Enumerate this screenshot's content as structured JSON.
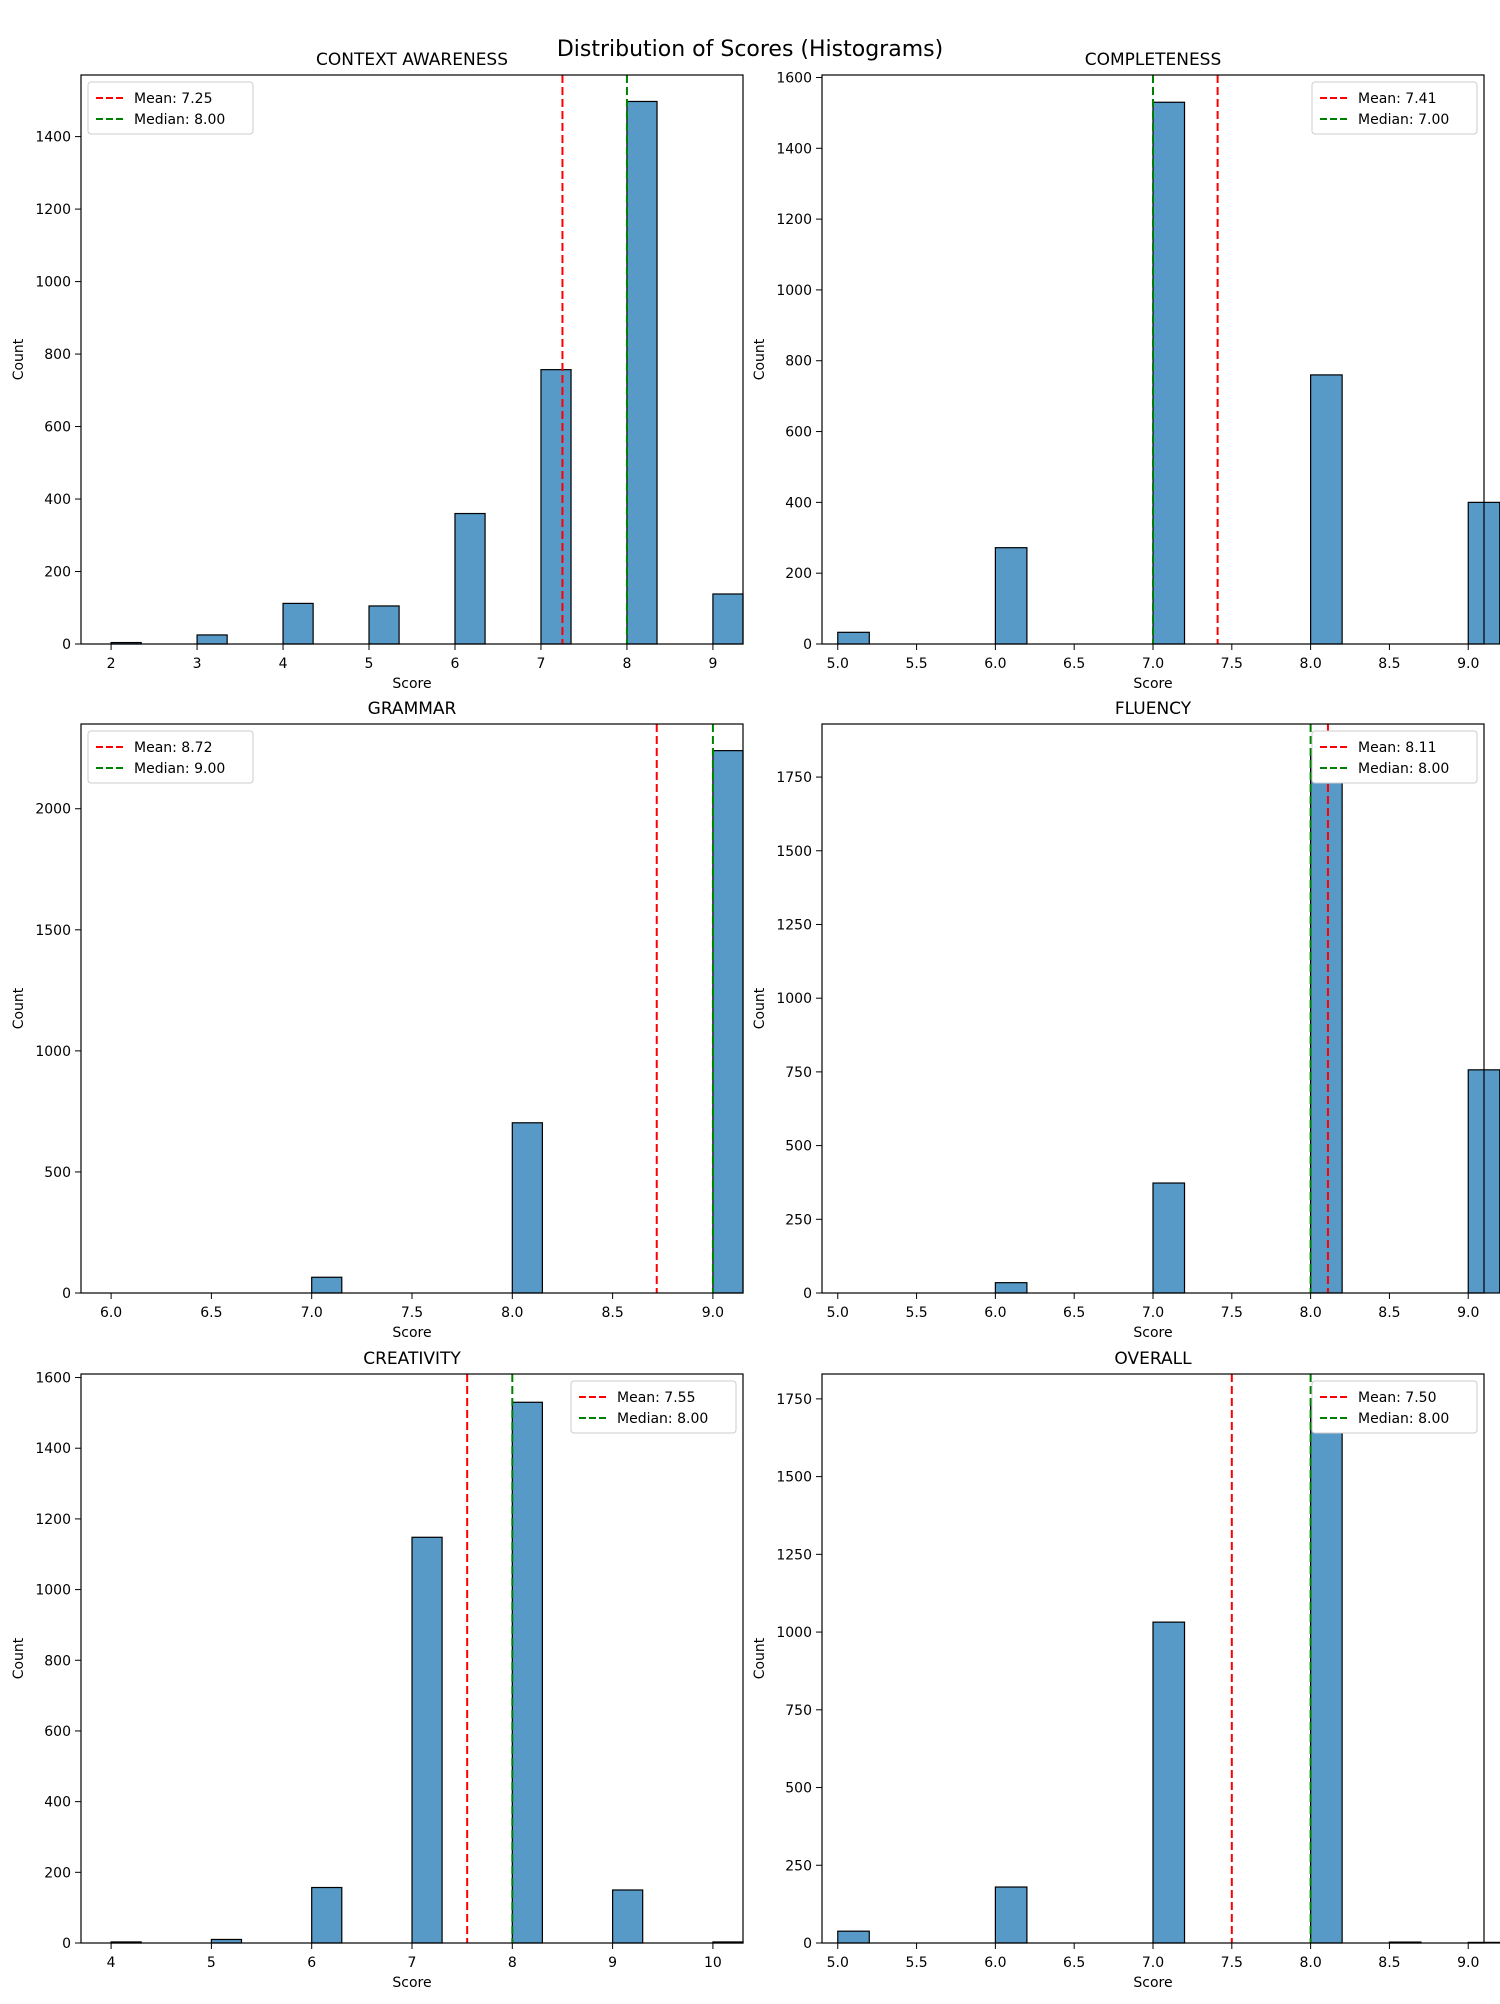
{
  "title": "Distribution of Scores (Histograms)",
  "colors": {
    "bar": "#5799c7",
    "bar_edge": "#000000",
    "mean": "#ff0000",
    "median": "#008000"
  },
  "chart_data": [
    {
      "type": "bar",
      "title": "CONTEXT AWARENESS",
      "xlabel": "Score",
      "ylabel": "Count",
      "xlim": [
        1.65,
        9.35
      ],
      "ylim": [
        0,
        1570
      ],
      "xticks": [
        2,
        3,
        4,
        5,
        6,
        7,
        8,
        9
      ],
      "xtick_labels": [
        "2",
        "3",
        "4",
        "5",
        "6",
        "7",
        "8",
        "9"
      ],
      "yticks": [
        0,
        200,
        400,
        600,
        800,
        1000,
        1200,
        1400
      ],
      "ytick_labels": [
        "0",
        "200",
        "400",
        "600",
        "800",
        "1000",
        "1200",
        "1400"
      ],
      "bar_width": 0.35,
      "bars": [
        [
          2,
          4
        ],
        [
          3,
          25
        ],
        [
          4,
          112
        ],
        [
          5,
          105
        ],
        [
          6,
          360
        ],
        [
          7,
          757
        ],
        [
          8,
          1497
        ],
        [
          9,
          138
        ]
      ],
      "mean": 7.25,
      "median": 8.0,
      "legend": [
        "Mean: 7.25",
        "Median: 8.00"
      ],
      "legend_loc": "upper-left"
    },
    {
      "type": "bar",
      "title": "COMPLETENESS",
      "xlabel": "Score",
      "ylabel": "Count",
      "xlim": [
        4.9,
        9.1
      ],
      "ylim": [
        0,
        1607
      ],
      "xticks": [
        5.0,
        5.5,
        6.0,
        6.5,
        7.0,
        7.5,
        8.0,
        8.5,
        9.0
      ],
      "xtick_labels": [
        "5.0",
        "5.5",
        "6.0",
        "6.5",
        "7.0",
        "7.5",
        "8.0",
        "8.5",
        "9.0"
      ],
      "yticks": [
        0,
        200,
        400,
        600,
        800,
        1000,
        1200,
        1400,
        1600
      ],
      "ytick_labels": [
        "0",
        "200",
        "400",
        "600",
        "800",
        "1000",
        "1200",
        "1400",
        "1600"
      ],
      "bar_width": 0.2,
      "bars": [
        [
          5,
          33
        ],
        [
          6,
          272
        ],
        [
          7,
          1530
        ],
        [
          8,
          760
        ],
        [
          9,
          400
        ]
      ],
      "mean": 7.41,
      "median": 7.0,
      "legend": [
        "Mean: 7.41",
        "Median: 7.00"
      ],
      "legend_loc": "upper-right"
    },
    {
      "type": "bar",
      "title": "GRAMMAR",
      "xlabel": "Score",
      "ylabel": "Count",
      "xlim": [
        5.85,
        9.15
      ],
      "ylim": [
        0,
        2350
      ],
      "xticks": [
        6.0,
        6.5,
        7.0,
        7.5,
        8.0,
        8.5,
        9.0
      ],
      "xtick_labels": [
        "6.0",
        "6.5",
        "7.0",
        "7.5",
        "8.0",
        "8.5",
        "9.0"
      ],
      "yticks": [
        0,
        500,
        1000,
        1500,
        2000
      ],
      "ytick_labels": [
        "0",
        "500",
        "1000",
        "1500",
        "2000"
      ],
      "bar_width": 0.15,
      "bars": [
        [
          7,
          65
        ],
        [
          8,
          703
        ],
        [
          9,
          2240
        ]
      ],
      "mean": 8.72,
      "median": 9.0,
      "legend": [
        "Mean: 8.72",
        "Median: 9.00"
      ],
      "legend_loc": "upper-left"
    },
    {
      "type": "bar",
      "title": "FLUENCY",
      "xlabel": "Score",
      "ylabel": "Count",
      "xlim": [
        4.9,
        9.1
      ],
      "ylim": [
        0,
        1930
      ],
      "xticks": [
        5.0,
        5.5,
        6.0,
        6.5,
        7.0,
        7.5,
        8.0,
        8.5,
        9.0
      ],
      "xtick_labels": [
        "5.0",
        "5.5",
        "6.0",
        "6.5",
        "7.0",
        "7.5",
        "8.0",
        "8.5",
        "9.0"
      ],
      "yticks": [
        0,
        250,
        500,
        750,
        1000,
        1250,
        1500,
        1750
      ],
      "ytick_labels": [
        "0",
        "250",
        "500",
        "750",
        "1000",
        "1250",
        "1500",
        "1750"
      ],
      "bar_width": 0.2,
      "bars": [
        [
          6,
          35
        ],
        [
          7,
          373
        ],
        [
          8,
          1838
        ],
        [
          9,
          757
        ]
      ],
      "mean": 8.11,
      "median": 8.0,
      "legend": [
        "Mean: 8.11",
        "Median: 8.00"
      ],
      "legend_loc": "upper-right"
    },
    {
      "type": "bar",
      "title": "CREATIVITY",
      "xlabel": "Score",
      "ylabel": "Count",
      "xlim": [
        3.7,
        10.3
      ],
      "ylim": [
        0,
        1610
      ],
      "xticks": [
        4,
        5,
        6,
        7,
        8,
        9,
        10
      ],
      "xtick_labels": [
        "4",
        "5",
        "6",
        "7",
        "8",
        "9",
        "10"
      ],
      "yticks": [
        0,
        200,
        400,
        600,
        800,
        1000,
        1200,
        1400,
        1600
      ],
      "ytick_labels": [
        "0",
        "200",
        "400",
        "600",
        "800",
        "1000",
        "1200",
        "1400",
        "1600"
      ],
      "bar_width": 0.3,
      "bars": [
        [
          4,
          3
        ],
        [
          5,
          10
        ],
        [
          6,
          157
        ],
        [
          7,
          1148
        ],
        [
          8,
          1530
        ],
        [
          9,
          150
        ],
        [
          10,
          3
        ]
      ],
      "mean": 7.55,
      "median": 8.0,
      "legend": [
        "Mean: 7.55",
        "Median: 8.00"
      ],
      "legend_loc": "upper-right"
    },
    {
      "type": "bar",
      "title": "OVERALL",
      "xlabel": "Score",
      "ylabel": "Count",
      "xlim": [
        4.9,
        9.1
      ],
      "ylim": [
        0,
        1830
      ],
      "xticks": [
        5.0,
        5.5,
        6.0,
        6.5,
        7.0,
        7.5,
        8.0,
        8.5,
        9.0
      ],
      "xtick_labels": [
        "5.0",
        "5.5",
        "6.0",
        "6.5",
        "7.0",
        "7.5",
        "8.0",
        "8.5",
        "9.0"
      ],
      "yticks": [
        0,
        250,
        500,
        750,
        1000,
        1250,
        1500,
        1750
      ],
      "ytick_labels": [
        "0",
        "250",
        "500",
        "750",
        "1000",
        "1250",
        "1500",
        "1750"
      ],
      "bar_width": 0.2,
      "bars": [
        [
          5,
          38
        ],
        [
          6,
          180
        ],
        [
          7,
          1032
        ],
        [
          8,
          1748
        ],
        [
          8.5,
          3
        ],
        [
          9,
          2
        ]
      ],
      "mean": 7.5,
      "median": 8.0,
      "legend": [
        "Mean: 7.50",
        "Median: 8.00"
      ],
      "legend_loc": "upper-right"
    }
  ]
}
